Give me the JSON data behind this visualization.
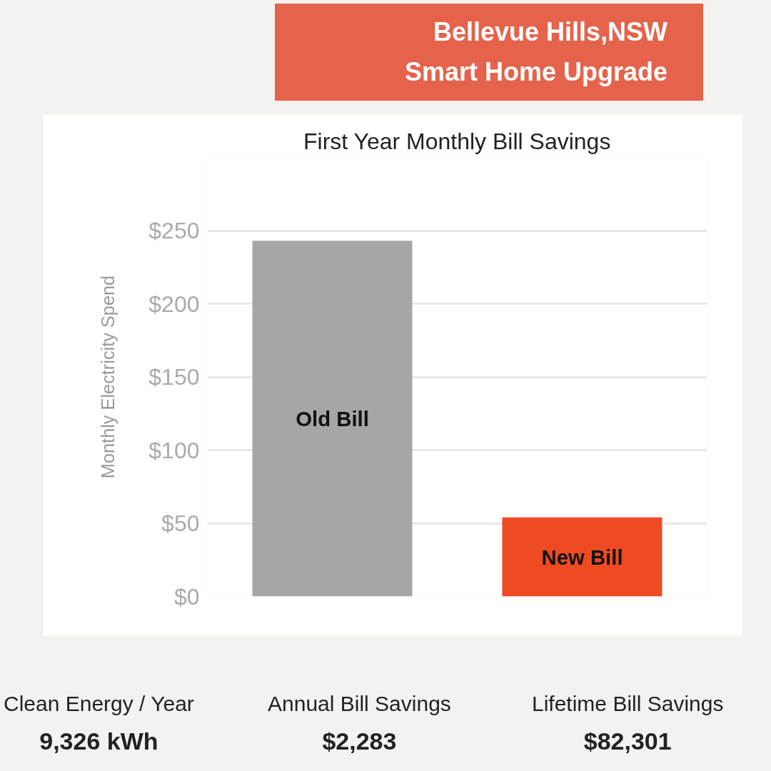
{
  "chart_data": {
    "type": "bar",
    "title": "First Year Monthly Bill Savings",
    "ylabel": "Monthly Electricity Spend",
    "categories": [
      "Old Bill",
      "New Bill"
    ],
    "values": [
      243,
      54
    ],
    "colors": [
      "#a6a6a6",
      "#ee4b23"
    ],
    "ylim": [
      0,
      300
    ],
    "yticks": [
      {
        "value": 0,
        "label": "$0"
      },
      {
        "value": 50,
        "label": "$50"
      },
      {
        "value": 100,
        "label": "$100"
      },
      {
        "value": 150,
        "label": "$150"
      },
      {
        "value": 200,
        "label": "$200"
      },
      {
        "value": 250,
        "label": "$250"
      },
      {
        "value": 300,
        "label": null
      }
    ],
    "grid": "y",
    "tick_labels": "y",
    "annotations": [
      "Bellevue Hills,NSW",
      "Smart Home Upgrade",
      "Clean Energy / Year",
      "9,326 kWh",
      "Annual Bill Savings",
      "$2,283",
      "Lifetime Bill Savings",
      "$82,301"
    ]
  }
}
